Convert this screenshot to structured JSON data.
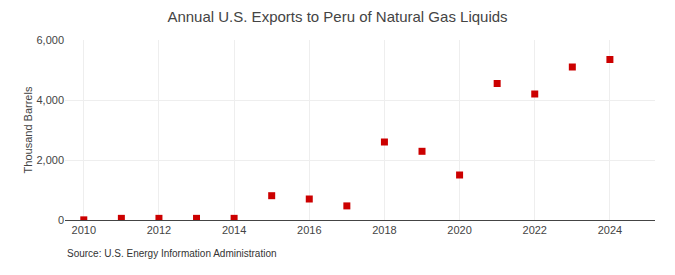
{
  "chart_data": {
    "type": "scatter",
    "title": "Annual U.S. Exports to Peru of Natural Gas Liquids",
    "ylabel": "Thousand Barrels",
    "annotations": [
      "Source: U.S. Energy Information Administration"
    ],
    "x": [
      2010,
      2011,
      2012,
      2013,
      2014,
      2015,
      2016,
      2017,
      2018,
      2019,
      2020,
      2021,
      2022,
      2023,
      2024
    ],
    "values": [
      5,
      55,
      55,
      55,
      55,
      810,
      700,
      470,
      2600,
      2290,
      1500,
      4550,
      4200,
      5100,
      5350
    ],
    "color": "#cc0000",
    "marker": "square",
    "xlim": [
      2009.5,
      2025.2
    ],
    "xticks": [
      2010,
      2012,
      2014,
      2016,
      2018,
      2020,
      2022,
      2024
    ],
    "ylim": [
      0,
      6000
    ],
    "yticks": [
      0,
      {
        "value": 2000,
        "label": "2,000"
      },
      {
        "value": 4000,
        "label": "4,000"
      },
      {
        "value": 6000,
        "label": "6,000"
      }
    ],
    "grid": true
  }
}
